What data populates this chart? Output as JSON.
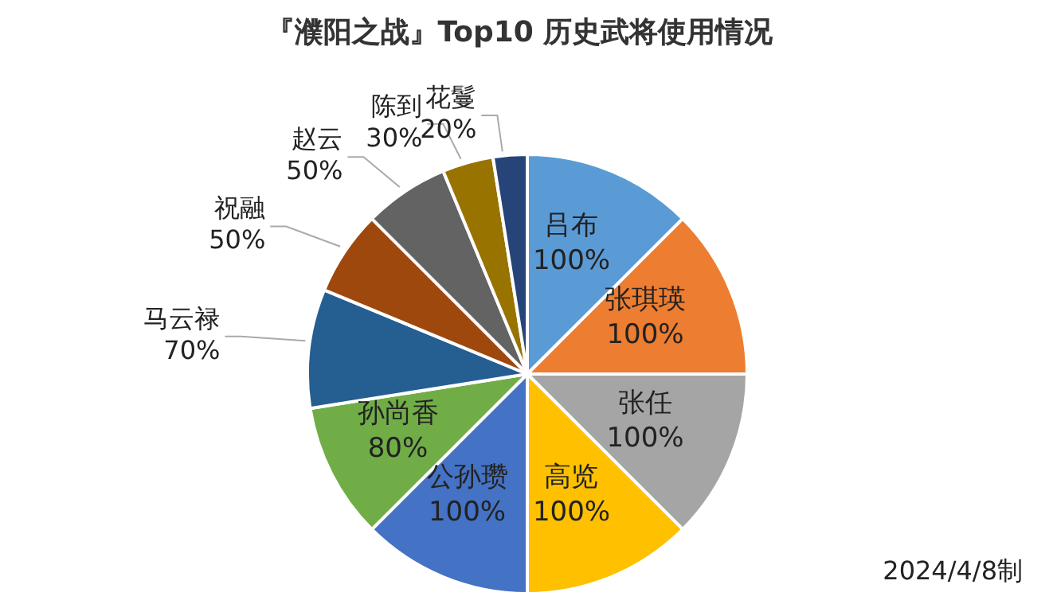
{
  "chart_data": {
    "type": "pie",
    "title": "『濮阳之战』Top10 历史武将使用情况",
    "categories": [
      "吕布",
      "张琪瑛",
      "张任",
      "高览",
      "公孙瓒",
      "孙尚香",
      "马云禄",
      "祝融",
      "赵云",
      "陈到",
      "花鬘"
    ],
    "values": [
      100,
      100,
      100,
      100,
      100,
      80,
      70,
      50,
      50,
      30,
      20
    ],
    "value_labels": [
      "100%",
      "100%",
      "100%",
      "100%",
      "100%",
      "80%",
      "70%",
      "50%",
      "50%",
      "30%",
      "20%"
    ],
    "colors": [
      "#5b9bd5",
      "#ed7d31",
      "#a5a5a5",
      "#ffc000",
      "#4472c4",
      "#70ad47",
      "#255e91",
      "#9e480e",
      "#636363",
      "#997300",
      "#264478"
    ],
    "annotations": [
      "2024/4/8制"
    ],
    "legend": false
  }
}
